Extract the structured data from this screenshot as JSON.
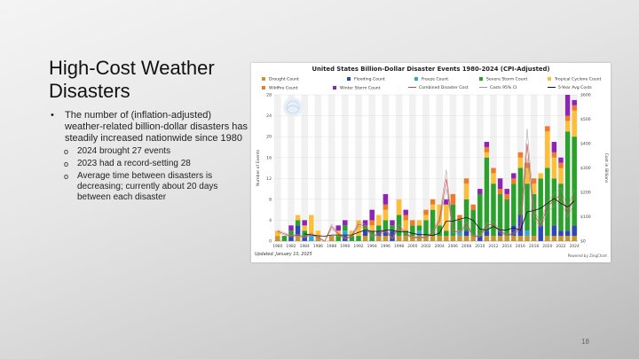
{
  "slide": {
    "title_line1": "High-Cost Weather",
    "title_line2": "Disasters",
    "bullet": "The number of (inflation-adjusted) weather-related billion-dollar disasters has steadily increased nationwide since 1980",
    "sub_bullets": [
      "2024 brought 27 events",
      "2023 had a record-setting 28",
      "Average time between disasters is decreasing; currently about 20 days between each disaster"
    ],
    "page_number": "18"
  },
  "chart": {
    "updated": "Updated: January 10, 2025",
    "powered": "Powered by ZingChart",
    "legend": {
      "drought": "Drought Count",
      "flooding": "Flooding Count",
      "freeze": "Freeze Count",
      "severe_storm": "Severe Storm Count",
      "tropical_cyclone": "Tropical Cyclone Count",
      "wildfire": "Wildfire Count",
      "winter_storm": "Winter Storm Count",
      "combined_cost": "Combined Disaster Cost",
      "costs_ci": "Costs 95% CI",
      "avg_costs": "5-Year Avg Costs"
    }
  },
  "colors": {
    "drought": "#c8962a",
    "flooding": "#2f46b3",
    "freeze": "#35a6d6",
    "severe_storm": "#2ca02c",
    "tropical_cyclone": "#fbbf3c",
    "wildfire": "#ef7a2a",
    "winter_storm": "#8e24b6",
    "combined_cost": "#d64545",
    "costs_ci": "#9a9a9a",
    "avg_costs": "#111111"
  },
  "chart_data": {
    "type": "bar",
    "title": "United States Billion-Dollar Disaster Events 1980-2024 (CPI-Adjusted)",
    "xlabel": "",
    "ylabel": "Number of Events",
    "y2label": "Cost in Billions",
    "ylim": [
      0,
      28
    ],
    "y2lim": [
      0,
      600
    ],
    "y_ticks": [
      "0",
      "4",
      "8",
      "12",
      "16",
      "20",
      "24",
      "28"
    ],
    "y2_ticks": [
      "$0",
      "$100",
      "$200",
      "$300",
      "$400",
      "$500",
      "$600"
    ],
    "x_ticks": [
      "1980",
      "1982",
      "1984",
      "1986",
      "1988",
      "1990",
      "1992",
      "1994",
      "1996",
      "1998",
      "2000",
      "2002",
      "2004",
      "2006",
      "2008",
      "2010",
      "2012",
      "2014",
      "2016",
      "2018",
      "2020",
      "2022",
      "2024"
    ],
    "years": [
      1980,
      1981,
      1982,
      1983,
      1984,
      1985,
      1986,
      1987,
      1988,
      1989,
      1990,
      1991,
      1992,
      1993,
      1994,
      1995,
      1996,
      1997,
      1998,
      1999,
      2000,
      2001,
      2002,
      2003,
      2004,
      2005,
      2006,
      2007,
      2008,
      2009,
      2010,
      2011,
      2012,
      2013,
      2014,
      2015,
      2016,
      2017,
      2018,
      2019,
      2020,
      2021,
      2022,
      2023,
      2024
    ],
    "series": [
      {
        "key": "drought",
        "name": "Drought Count",
        "values": [
          1,
          0,
          0,
          1,
          0,
          0,
          1,
          0,
          1,
          0,
          0,
          0,
          0,
          1,
          0,
          1,
          1,
          0,
          1,
          1,
          1,
          1,
          1,
          1,
          1,
          1,
          1,
          1,
          1,
          1,
          0,
          1,
          1,
          1,
          1,
          1,
          1,
          1,
          1,
          0,
          1,
          1,
          1,
          1,
          1
        ]
      },
      {
        "key": "flooding",
        "name": "Flooding Count",
        "values": [
          0,
          0,
          1,
          2,
          1,
          0,
          0,
          0,
          0,
          0,
          1,
          0,
          0,
          1,
          0,
          1,
          1,
          2,
          0,
          0,
          0,
          0,
          0,
          0,
          0,
          0,
          0,
          0,
          1,
          0,
          1,
          1,
          0,
          1,
          0,
          2,
          4,
          0,
          0,
          3,
          0,
          2,
          1,
          1,
          2
        ]
      },
      {
        "key": "freeze",
        "name": "Freeze Count",
        "values": [
          0,
          0,
          0,
          0,
          0,
          1,
          0,
          0,
          0,
          0,
          1,
          0,
          0,
          0,
          0,
          0,
          0,
          0,
          0,
          0,
          0,
          1,
          0,
          0,
          0,
          0,
          0,
          1,
          0,
          0,
          0,
          0,
          0,
          0,
          0,
          0,
          0,
          1,
          0,
          0,
          0,
          0,
          0,
          0,
          0
        ]
      },
      {
        "key": "severe_storm",
        "name": "Severe Storm Count",
        "values": [
          0,
          1,
          1,
          1,
          1,
          0,
          0,
          0,
          0,
          1,
          1,
          1,
          1,
          1,
          2,
          1,
          2,
          1,
          4,
          1,
          2,
          1,
          3,
          5,
          2,
          1,
          6,
          2,
          6,
          5,
          8,
          14,
          10,
          7,
          7,
          8,
          9,
          9,
          8,
          9,
          13,
          9,
          9,
          19,
          17
        ]
      },
      {
        "key": "tropical_cyclone",
        "name": "Tropical Cyclone Count",
        "values": [
          1,
          0,
          0,
          1,
          1,
          4,
          1,
          0,
          0,
          1,
          0,
          1,
          3,
          0,
          1,
          2,
          2,
          0,
          3,
          2,
          0,
          1,
          1,
          1,
          4,
          5,
          0,
          0,
          3,
          0,
          0,
          1,
          2,
          0,
          0,
          0,
          2,
          3,
          2,
          1,
          7,
          4,
          3,
          2,
          5
        ]
      },
      {
        "key": "wildfire",
        "name": "Wildfire Count",
        "values": [
          0,
          0,
          0,
          0,
          0,
          0,
          0,
          0,
          0,
          0,
          0,
          0,
          0,
          0,
          1,
          0,
          1,
          0,
          0,
          1,
          1,
          0,
          1,
          1,
          0,
          0,
          2,
          1,
          1,
          1,
          0,
          1,
          1,
          1,
          1,
          1,
          1,
          1,
          1,
          0,
          1,
          1,
          1,
          1,
          1
        ]
      },
      {
        "key": "winter_storm",
        "name": "Winter Storm Count",
        "values": [
          0,
          0,
          1,
          0,
          1,
          0,
          0,
          0,
          0,
          1,
          1,
          0,
          0,
          1,
          2,
          0,
          2,
          1,
          0,
          1,
          0,
          0,
          0,
          0,
          0,
          1,
          0,
          0,
          0,
          0,
          1,
          1,
          0,
          2,
          1,
          1,
          0,
          0,
          0,
          0,
          0,
          2,
          1,
          4,
          1
        ]
      }
    ],
    "combined_cost_billions": [
      40,
      30,
      20,
      25,
      15,
      30,
      15,
      0,
      60,
      30,
      10,
      20,
      70,
      60,
      20,
      30,
      45,
      10,
      60,
      30,
      15,
      15,
      15,
      35,
      85,
      255,
      40,
      35,
      70,
      20,
      20,
      65,
      70,
      40,
      25,
      30,
      55,
      400,
      110,
      65,
      140,
      170,
      190,
      115,
      185
    ],
    "five_year_avg_costs_billions": [
      null,
      null,
      null,
      null,
      30,
      25,
      22,
      20,
      25,
      25,
      25,
      25,
      36,
      45,
      40,
      40,
      45,
      45,
      38,
      40,
      32,
      26,
      27,
      23,
      33,
      82,
      82,
      90,
      97,
      85,
      50,
      45,
      60,
      45,
      46,
      55,
      45,
      120,
      125,
      135,
      155,
      175,
      155,
      140,
      165
    ]
  }
}
